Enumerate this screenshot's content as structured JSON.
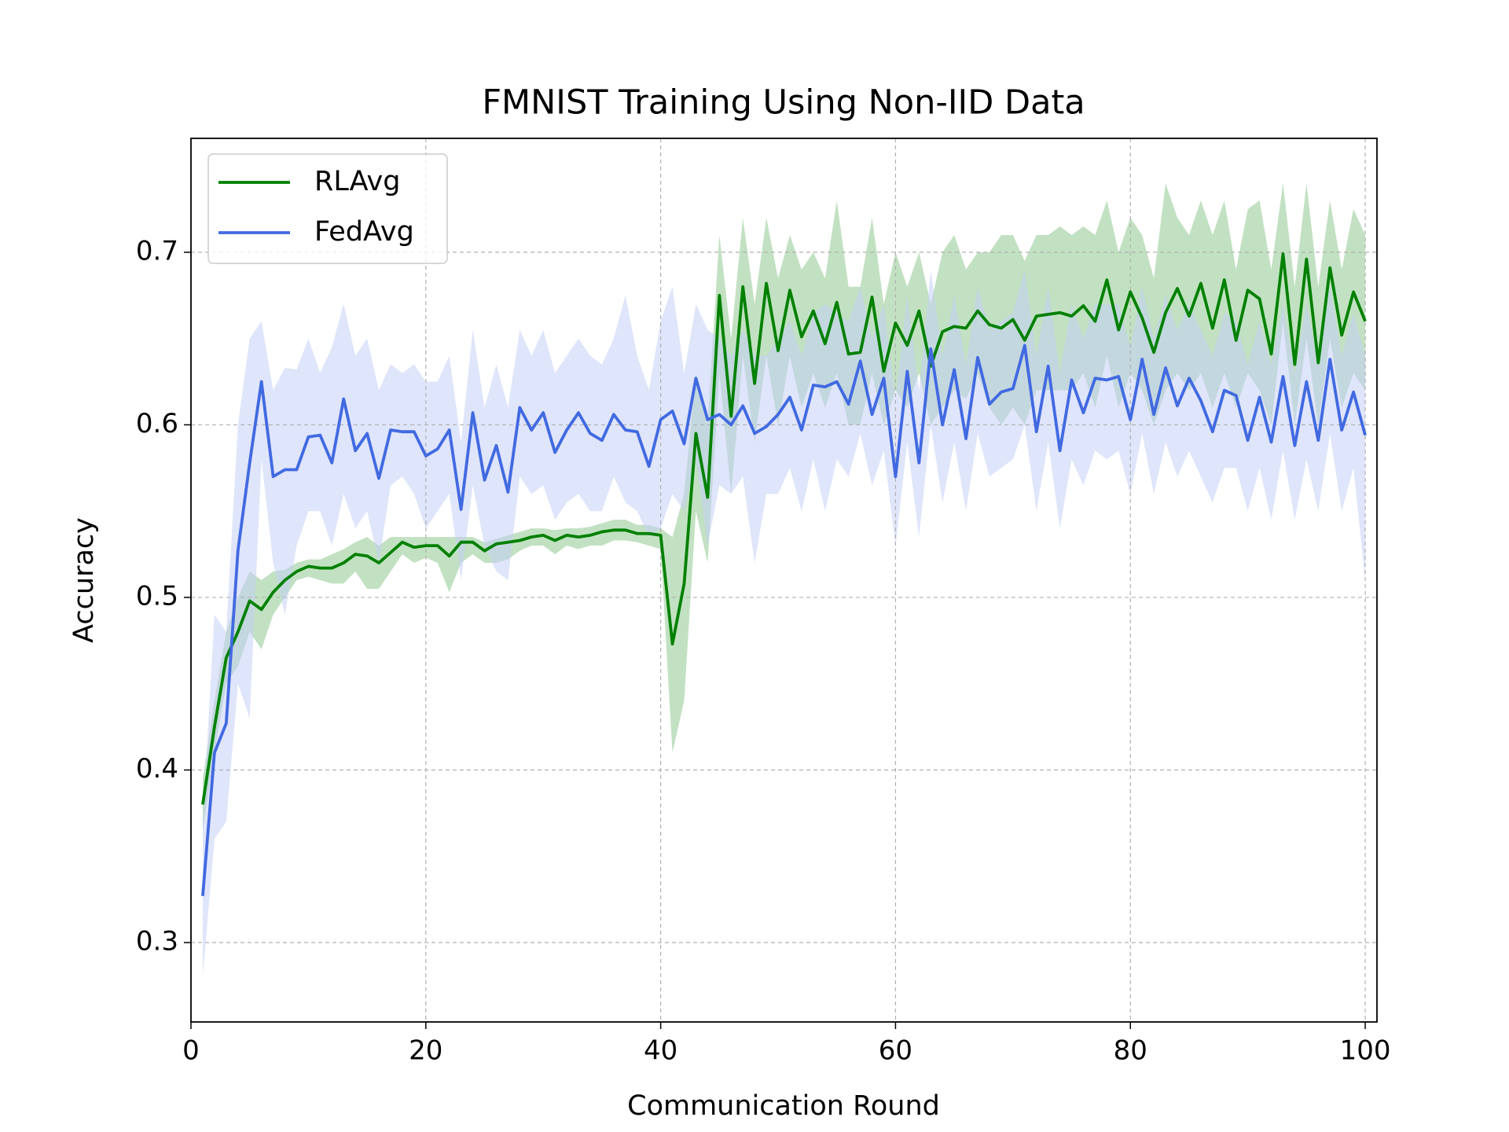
{
  "chart_data": {
    "type": "line",
    "title": "FMNIST Training Using Non-IID Data",
    "xlabel": "Communication Round",
    "ylabel": "Accuracy",
    "x": [
      1,
      2,
      3,
      4,
      5,
      6,
      7,
      8,
      9,
      10,
      11,
      12,
      13,
      14,
      15,
      16,
      17,
      18,
      19,
      20,
      21,
      22,
      23,
      24,
      25,
      26,
      27,
      28,
      29,
      30,
      31,
      32,
      33,
      34,
      35,
      36,
      37,
      38,
      39,
      40,
      41,
      42,
      43,
      44,
      45,
      46,
      47,
      48,
      49,
      50,
      51,
      52,
      53,
      54,
      55,
      56,
      57,
      58,
      59,
      60,
      61,
      62,
      63,
      64,
      65,
      66,
      67,
      68,
      69,
      70,
      71,
      72,
      73,
      74,
      75,
      76,
      77,
      78,
      79,
      80,
      81,
      82,
      83,
      84,
      85,
      86,
      87,
      88,
      89,
      90,
      91,
      92,
      93,
      94,
      95,
      96,
      97,
      98,
      99,
      100
    ],
    "series": [
      {
        "name": "RLAvg",
        "color": "#008000",
        "band_color": "#8fc98f",
        "values": [
          0.38,
          0.425,
          0.465,
          0.48,
          0.498,
          0.493,
          0.503,
          0.51,
          0.515,
          0.518,
          0.517,
          0.517,
          0.52,
          0.525,
          0.524,
          0.52,
          0.526,
          0.532,
          0.529,
          0.53,
          0.53,
          0.524,
          0.532,
          0.532,
          0.527,
          0.531,
          0.532,
          0.533,
          0.535,
          0.536,
          0.533,
          0.536,
          0.535,
          0.536,
          0.538,
          0.539,
          0.539,
          0.537,
          0.537,
          0.536,
          0.473,
          0.508,
          0.595,
          0.558,
          0.675,
          0.605,
          0.68,
          0.624,
          0.682,
          0.643,
          0.678,
          0.651,
          0.666,
          0.647,
          0.671,
          0.641,
          0.642,
          0.674,
          0.631,
          0.659,
          0.646,
          0.666,
          0.634,
          0.654,
          0.657,
          0.656,
          0.666,
          0.658,
          0.656,
          0.661,
          0.649,
          0.663,
          0.664,
          0.665,
          0.663,
          0.669,
          0.66,
          0.684,
          0.655,
          0.677,
          0.662,
          0.642,
          0.665,
          0.679,
          0.663,
          0.682,
          0.656,
          0.684,
          0.649,
          0.678,
          0.673,
          0.641,
          0.699,
          0.635,
          0.696,
          0.636,
          0.691,
          0.652,
          0.677,
          0.66
        ],
        "lower": [
          0.365,
          0.41,
          0.45,
          0.46,
          0.48,
          0.47,
          0.49,
          0.5,
          0.51,
          0.512,
          0.51,
          0.508,
          0.508,
          0.515,
          0.505,
          0.505,
          0.515,
          0.525,
          0.52,
          0.523,
          0.52,
          0.503,
          0.52,
          0.525,
          0.52,
          0.52,
          0.522,
          0.527,
          0.53,
          0.53,
          0.525,
          0.53,
          0.528,
          0.53,
          0.53,
          0.533,
          0.533,
          0.532,
          0.53,
          0.528,
          0.41,
          0.44,
          0.55,
          0.52,
          0.63,
          0.56,
          0.64,
          0.59,
          0.64,
          0.6,
          0.64,
          0.61,
          0.63,
          0.61,
          0.63,
          0.6,
          0.6,
          0.63,
          0.6,
          0.62,
          0.61,
          0.63,
          0.6,
          0.61,
          0.62,
          0.615,
          0.63,
          0.61,
          0.6,
          0.61,
          0.6,
          0.62,
          0.62,
          0.62,
          0.62,
          0.63,
          0.61,
          0.64,
          0.61,
          0.63,
          0.62,
          0.6,
          0.62,
          0.63,
          0.62,
          0.63,
          0.61,
          0.63,
          0.61,
          0.63,
          0.62,
          0.6,
          0.66,
          0.6,
          0.65,
          0.6,
          0.65,
          0.61,
          0.63,
          0.62
        ],
        "upper": [
          0.395,
          0.44,
          0.48,
          0.5,
          0.515,
          0.51,
          0.515,
          0.516,
          0.52,
          0.522,
          0.522,
          0.525,
          0.528,
          0.532,
          0.535,
          0.53,
          0.535,
          0.535,
          0.535,
          0.535,
          0.535,
          0.535,
          0.535,
          0.535,
          0.532,
          0.534,
          0.536,
          0.538,
          0.54,
          0.54,
          0.539,
          0.54,
          0.54,
          0.541,
          0.543,
          0.545,
          0.545,
          0.542,
          0.542,
          0.54,
          0.535,
          0.56,
          0.63,
          0.6,
          0.71,
          0.65,
          0.72,
          0.67,
          0.72,
          0.685,
          0.71,
          0.69,
          0.7,
          0.685,
          0.73,
          0.68,
          0.68,
          0.72,
          0.67,
          0.7,
          0.68,
          0.7,
          0.67,
          0.7,
          0.71,
          0.69,
          0.7,
          0.7,
          0.71,
          0.71,
          0.695,
          0.71,
          0.71,
          0.715,
          0.71,
          0.715,
          0.71,
          0.73,
          0.7,
          0.72,
          0.71,
          0.685,
          0.74,
          0.72,
          0.71,
          0.73,
          0.71,
          0.73,
          0.69,
          0.725,
          0.73,
          0.69,
          0.74,
          0.68,
          0.74,
          0.68,
          0.73,
          0.69,
          0.725,
          0.71
        ]
      },
      {
        "name": "FedAvg",
        "color": "#4169e1",
        "band_color": "#c4cff5",
        "values": [
          0.327,
          0.41,
          0.427,
          0.527,
          0.578,
          0.625,
          0.57,
          0.574,
          0.574,
          0.593,
          0.594,
          0.578,
          0.615,
          0.585,
          0.595,
          0.569,
          0.597,
          0.596,
          0.596,
          0.582,
          0.586,
          0.597,
          0.551,
          0.607,
          0.568,
          0.588,
          0.561,
          0.61,
          0.597,
          0.607,
          0.584,
          0.597,
          0.607,
          0.595,
          0.591,
          0.606,
          0.597,
          0.596,
          0.576,
          0.603,
          0.608,
          0.589,
          0.627,
          0.603,
          0.606,
          0.6,
          0.611,
          0.595,
          0.599,
          0.606,
          0.616,
          0.597,
          0.623,
          0.622,
          0.625,
          0.612,
          0.637,
          0.606,
          0.627,
          0.57,
          0.631,
          0.578,
          0.644,
          0.6,
          0.632,
          0.592,
          0.639,
          0.612,
          0.619,
          0.621,
          0.646,
          0.596,
          0.634,
          0.585,
          0.626,
          0.607,
          0.627,
          0.626,
          0.628,
          0.603,
          0.638,
          0.606,
          0.633,
          0.611,
          0.627,
          0.614,
          0.596,
          0.62,
          0.617,
          0.591,
          0.616,
          0.59,
          0.628,
          0.588,
          0.625,
          0.591,
          0.638,
          0.597,
          0.619,
          0.594
        ],
        "lower": [
          0.28,
          0.36,
          0.37,
          0.45,
          0.43,
          0.58,
          0.52,
          0.49,
          0.53,
          0.55,
          0.55,
          0.53,
          0.56,
          0.54,
          0.55,
          0.52,
          0.565,
          0.57,
          0.56,
          0.54,
          0.55,
          0.56,
          0.51,
          0.565,
          0.53,
          0.515,
          0.51,
          0.57,
          0.56,
          0.565,
          0.545,
          0.555,
          0.56,
          0.55,
          0.55,
          0.57,
          0.555,
          0.55,
          0.535,
          0.54,
          0.56,
          0.55,
          0.58,
          0.53,
          0.565,
          0.56,
          0.57,
          0.52,
          0.56,
          0.56,
          0.575,
          0.55,
          0.58,
          0.55,
          0.58,
          0.57,
          0.595,
          0.565,
          0.585,
          0.53,
          0.59,
          0.535,
          0.6,
          0.555,
          0.59,
          0.55,
          0.595,
          0.57,
          0.575,
          0.58,
          0.6,
          0.55,
          0.59,
          0.54,
          0.58,
          0.565,
          0.585,
          0.58,
          0.585,
          0.56,
          0.595,
          0.56,
          0.59,
          0.57,
          0.585,
          0.57,
          0.555,
          0.575,
          0.575,
          0.55,
          0.575,
          0.545,
          0.585,
          0.545,
          0.58,
          0.55,
          0.595,
          0.55,
          0.575,
          0.51
        ],
        "upper": [
          0.37,
          0.49,
          0.48,
          0.6,
          0.65,
          0.66,
          0.62,
          0.633,
          0.632,
          0.65,
          0.63,
          0.645,
          0.67,
          0.64,
          0.65,
          0.62,
          0.635,
          0.63,
          0.635,
          0.625,
          0.625,
          0.64,
          0.59,
          0.655,
          0.61,
          0.635,
          0.61,
          0.655,
          0.64,
          0.655,
          0.63,
          0.64,
          0.65,
          0.64,
          0.635,
          0.65,
          0.675,
          0.64,
          0.62,
          0.66,
          0.68,
          0.63,
          0.67,
          0.655,
          0.65,
          0.64,
          0.655,
          0.64,
          0.64,
          0.65,
          0.66,
          0.64,
          0.665,
          0.67,
          0.665,
          0.66,
          0.68,
          0.65,
          0.67,
          0.615,
          0.675,
          0.62,
          0.69,
          0.64,
          0.675,
          0.635,
          0.68,
          0.655,
          0.66,
          0.665,
          0.69,
          0.64,
          0.68,
          0.63,
          0.67,
          0.65,
          0.67,
          0.67,
          0.67,
          0.645,
          0.68,
          0.65,
          0.675,
          0.655,
          0.67,
          0.655,
          0.64,
          0.665,
          0.66,
          0.635,
          0.66,
          0.635,
          0.67,
          0.63,
          0.67,
          0.635,
          0.68,
          0.64,
          0.665,
          0.64
        ]
      }
    ],
    "xlim": [
      0,
      101
    ],
    "xticks": [
      0,
      20,
      40,
      60,
      80,
      100
    ],
    "ylim": [
      0.254,
      0.766
    ],
    "yticks": [
      0.3,
      0.4,
      0.5,
      0.6,
      0.7
    ],
    "grid": true,
    "legend": "upper left"
  }
}
